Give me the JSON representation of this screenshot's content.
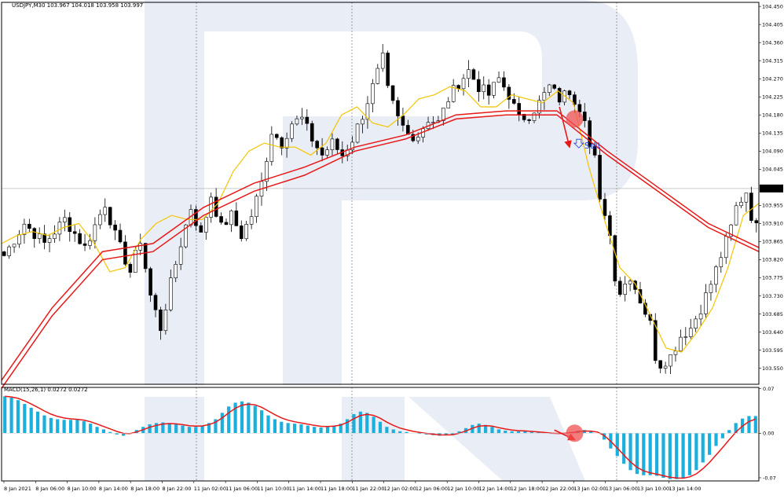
{
  "chart_data": [
    {
      "type": "candlestick",
      "title": "USDJPY,M30 103.967 104.018 103.958 103.997",
      "symbol": "USDJPY",
      "timeframe": "M30",
      "ohlc_header": "103.967 104.018 103.958 103.997",
      "current_price_label": "103.997",
      "current_price": 103.997,
      "ylim": [
        103.51,
        104.46
      ],
      "y_ticks": [
        "104.450",
        "104.405",
        "104.360",
        "104.315",
        "104.270",
        "104.225",
        "104.180",
        "104.135",
        "104.090",
        "104.045",
        "103.955",
        "103.910",
        "103.865",
        "103.820",
        "103.775",
        "103.730",
        "103.685",
        "103.640",
        "103.595",
        "103.550"
      ],
      "x_tick_labels": [
        "8 Jan 2021",
        "8 Jan 06:00",
        "8 Jan 10:00",
        "8 Jan 14:00",
        "8 Jan 18:00",
        "8 Jan 22:00",
        "11 Jan 02:00",
        "11 Jan 06:00",
        "11 Jan 10:00",
        "11 Jan 14:00",
        "11 Jan 18:00",
        "11 Jan 22:00",
        "12 Jan 02:00",
        "12 Jan 06:00",
        "12 Jan 10:00",
        "12 Jan 14:00",
        "12 Jan 18:00",
        "12 Jan 22:00",
        "13 Jan 02:00",
        "13 Jan 06:00",
        "13 Jan 10:00",
        "13 Jan 14:00"
      ],
      "close_path": [
        [
          0,
          103.83
        ],
        [
          4,
          103.91
        ],
        [
          8,
          103.86
        ],
        [
          12,
          103.92
        ],
        [
          16,
          103.85
        ],
        [
          20,
          103.96
        ],
        [
          22,
          103.88
        ],
        [
          25,
          103.79
        ],
        [
          27,
          103.87
        ],
        [
          29,
          103.73
        ],
        [
          31,
          103.65
        ],
        [
          33,
          103.76
        ],
        [
          35,
          103.86
        ],
        [
          37,
          103.95
        ],
        [
          39,
          103.88
        ],
        [
          41,
          103.98
        ],
        [
          43,
          103.9
        ],
        [
          45,
          103.93
        ],
        [
          47,
          103.88
        ],
        [
          49,
          103.93
        ],
        [
          51,
          104.01
        ],
        [
          53,
          104.14
        ],
        [
          55,
          104.11
        ],
        [
          57,
          104.16
        ],
        [
          59,
          104.17
        ],
        [
          61,
          104.12
        ],
        [
          63,
          104.08
        ],
        [
          65,
          104.11
        ],
        [
          67,
          104.08
        ],
        [
          69,
          104.12
        ],
        [
          71,
          104.18
        ],
        [
          73,
          104.25
        ],
        [
          75,
          104.32
        ],
        [
          76,
          104.24
        ],
        [
          78,
          104.17
        ],
        [
          80,
          104.13
        ],
        [
          82,
          104.13
        ],
        [
          84,
          104.17
        ],
        [
          86,
          104.16
        ],
        [
          88,
          104.22
        ],
        [
          90,
          104.26
        ],
        [
          92,
          104.29
        ],
        [
          94,
          104.25
        ],
        [
          96,
          104.23
        ],
        [
          98,
          104.27
        ],
        [
          100,
          104.23
        ],
        [
          102,
          104.17
        ],
        [
          104,
          104.18
        ],
        [
          106,
          104.21
        ],
        [
          108,
          104.25
        ],
        [
          110,
          104.22
        ],
        [
          112,
          104.24
        ],
        [
          114,
          104.2
        ],
        [
          115,
          104.18
        ],
        [
          116,
          104.1
        ],
        [
          117,
          104.07
        ],
        [
          118,
          103.96
        ],
        [
          119,
          103.94
        ],
        [
          120,
          103.88
        ],
        [
          121,
          103.78
        ],
        [
          122,
          103.74
        ],
        [
          124,
          103.78
        ],
        [
          126,
          103.72
        ],
        [
          128,
          103.66
        ],
        [
          129,
          103.58
        ],
        [
          130,
          103.56
        ],
        [
          132,
          103.58
        ],
        [
          134,
          103.63
        ],
        [
          136,
          103.65
        ],
        [
          138,
          103.7
        ],
        [
          140,
          103.76
        ],
        [
          142,
          103.83
        ],
        [
          144,
          103.9
        ],
        [
          145,
          103.95
        ],
        [
          146,
          103.97
        ],
        [
          147,
          103.99
        ],
        [
          148,
          103.93
        ],
        [
          149,
          103.9
        ],
        [
          150,
          103.93
        ]
      ],
      "series": [
        {
          "type": "line",
          "color": "#f5c400",
          "values": [
            103.86,
            103.88,
            103.89,
            103.88,
            103.9,
            103.91,
            103.86,
            103.79,
            103.8,
            103.87,
            103.91,
            103.93,
            103.92,
            103.92,
            103.96,
            104.04,
            104.09,
            104.11,
            104.1,
            104.1,
            104.08,
            104.11,
            104.18,
            104.2,
            104.16,
            104.15,
            104.18,
            104.22,
            104.23,
            104.25,
            104.24,
            104.2,
            104.2,
            104.23,
            104.22,
            104.21,
            104.24,
            104.21,
            104.05,
            103.92,
            103.8,
            103.76,
            103.68,
            103.6,
            103.59,
            103.64,
            103.7,
            103.8,
            103.93,
            103.96
          ]
        },
        {
          "type": "line",
          "color": "#e81818",
          "values": [
            103.5,
            103.68,
            103.82,
            103.84,
            103.93,
            103.99,
            104.03,
            104.09,
            104.12,
            104.17,
            104.18,
            104.18,
            104.08,
            103.99,
            103.9,
            103.84
          ]
        },
        {
          "type": "line",
          "color": "#e81818",
          "values": [
            103.52,
            103.7,
            103.84,
            103.86,
            103.95,
            104.01,
            104.05,
            104.1,
            104.13,
            104.18,
            104.19,
            104.19,
            104.09,
            104.0,
            103.91,
            103.85
          ]
        }
      ],
      "annotations": [
        {
          "type": "arrow",
          "color": "#e81818",
          "from": [
            110,
            104.2
          ],
          "to": [
            112,
            104.1
          ]
        },
        {
          "type": "circle",
          "color": "#f05050",
          "at": [
            113,
            104.17
          ]
        },
        {
          "type": "text",
          "label": "Sell",
          "color": "#2040e0",
          "at": [
            114,
            104.1
          ]
        },
        {
          "type": "arrow",
          "color": "#e81818",
          "from": [
            109,
            0.005
          ],
          "to": [
            113,
            -0.01
          ]
        },
        {
          "type": "circle",
          "color": "#f05050",
          "at": [
            113,
            0.0
          ]
        }
      ]
    },
    {
      "type": "bar",
      "title": "MACD(15,26,1) 0.0272 0.0272",
      "y_ticks": [
        "0.07",
        "0.00",
        "-0.07"
      ],
      "ylim": [
        -0.075,
        0.072
      ],
      "histogram_color": "#1aafdc",
      "signal_color": "#e81818",
      "values": [
        0.058,
        0.056,
        0.052,
        0.046,
        0.04,
        0.034,
        0.028,
        0.024,
        0.022,
        0.021,
        0.021,
        0.021,
        0.019,
        0.015,
        0.01,
        0.006,
        0.002,
        -0.002,
        -0.004,
        -0.001,
        0.005,
        0.01,
        0.014,
        0.016,
        0.017,
        0.016,
        0.014,
        0.012,
        0.01,
        0.01,
        0.012,
        0.016,
        0.022,
        0.032,
        0.042,
        0.048,
        0.05,
        0.048,
        0.043,
        0.036,
        0.028,
        0.022,
        0.018,
        0.016,
        0.015,
        0.014,
        0.012,
        0.01,
        0.009,
        0.01,
        0.012,
        0.015,
        0.022,
        0.03,
        0.034,
        0.032,
        0.026,
        0.018,
        0.01,
        0.006,
        0.003,
        0.002,
        0.0,
        -0.001,
        -0.002,
        -0.003,
        -0.004,
        -0.003,
        -0.002,
        0.003,
        0.008,
        0.013,
        0.015,
        0.013,
        0.01,
        0.006,
        0.004,
        0.003,
        0.003,
        0.003,
        0.002,
        0.001,
        0.0,
        -0.001,
        -0.001,
        0.0,
        0.002,
        0.004,
        0.005,
        0.003,
        0.0,
        -0.01,
        -0.024,
        -0.036,
        -0.048,
        -0.058,
        -0.064,
        -0.066,
        -0.066,
        -0.067,
        -0.07,
        -0.072,
        -0.072,
        -0.071,
        -0.066,
        -0.058,
        -0.046,
        -0.034,
        -0.02,
        -0.008,
        0.005,
        0.016,
        0.023,
        0.027,
        0.027
      ]
    }
  ]
}
